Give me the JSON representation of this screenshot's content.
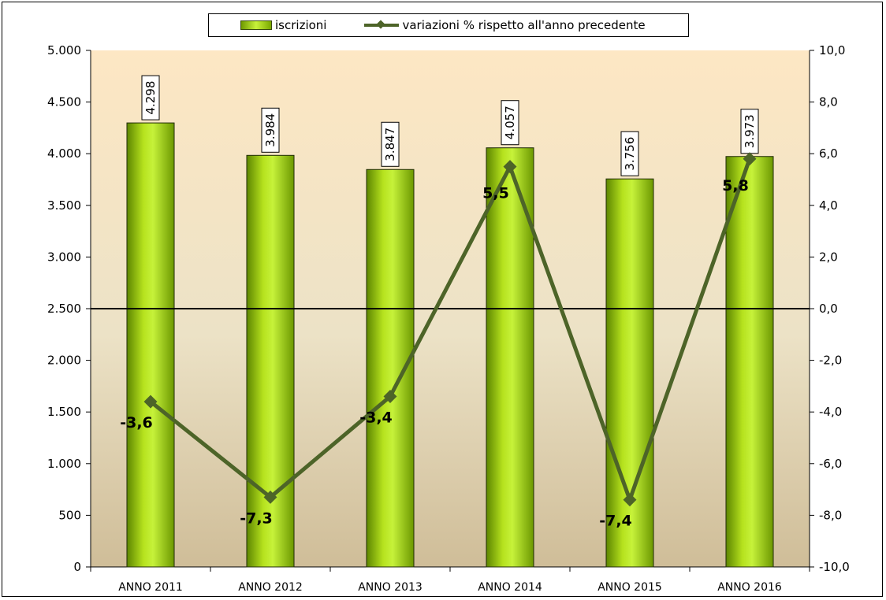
{
  "chart_data": {
    "type": "bar",
    "categories": [
      "ANNO 2011",
      "ANNO 2012",
      "ANNO 2013",
      "ANNO 2014",
      "ANNO 2015",
      "ANNO 2016"
    ],
    "series": [
      {
        "name": "iscrizioni",
        "type": "bar",
        "axis": "left",
        "values": [
          4298,
          3984,
          3847,
          4057,
          3756,
          3973
        ],
        "labels": [
          "4.298",
          "3.984",
          "3.847",
          "4.057",
          "3.756",
          "3.973"
        ],
        "color": "#9ccc10"
      },
      {
        "name": "variazioni % rispetto all'anno precedente",
        "type": "line",
        "axis": "right",
        "values": [
          -3.6,
          -7.3,
          -3.4,
          5.5,
          -7.4,
          5.8
        ],
        "labels": [
          "-3,6",
          "-7,3",
          "-3,4",
          "5,5",
          "-7,4",
          "5,8"
        ],
        "color": "#4d6428"
      }
    ],
    "left_axis": {
      "ylim": [
        0,
        5000
      ],
      "ticks": [
        0,
        500,
        1000,
        1500,
        2000,
        2500,
        3000,
        3500,
        4000,
        4500,
        5000
      ],
      "tick_labels": [
        "0",
        "500",
        "1.000",
        "1.500",
        "2.000",
        "2.500",
        "3.000",
        "3.500",
        "4.000",
        "4.500",
        "5.000"
      ]
    },
    "right_axis": {
      "ylim": [
        -10,
        10
      ],
      "ticks": [
        -10,
        -8,
        -6,
        -4,
        -2,
        0,
        2,
        4,
        6,
        8,
        10
      ],
      "tick_labels": [
        "-10,0",
        "-8,0",
        "-6,0",
        "-4,0",
        "-2,0",
        "0,0",
        "2,0",
        "4,0",
        "6,0",
        "8,0",
        "10,0"
      ]
    },
    "zero_line": true,
    "legend_position": "top",
    "title": "",
    "xlabel": "",
    "ylabel": ""
  }
}
